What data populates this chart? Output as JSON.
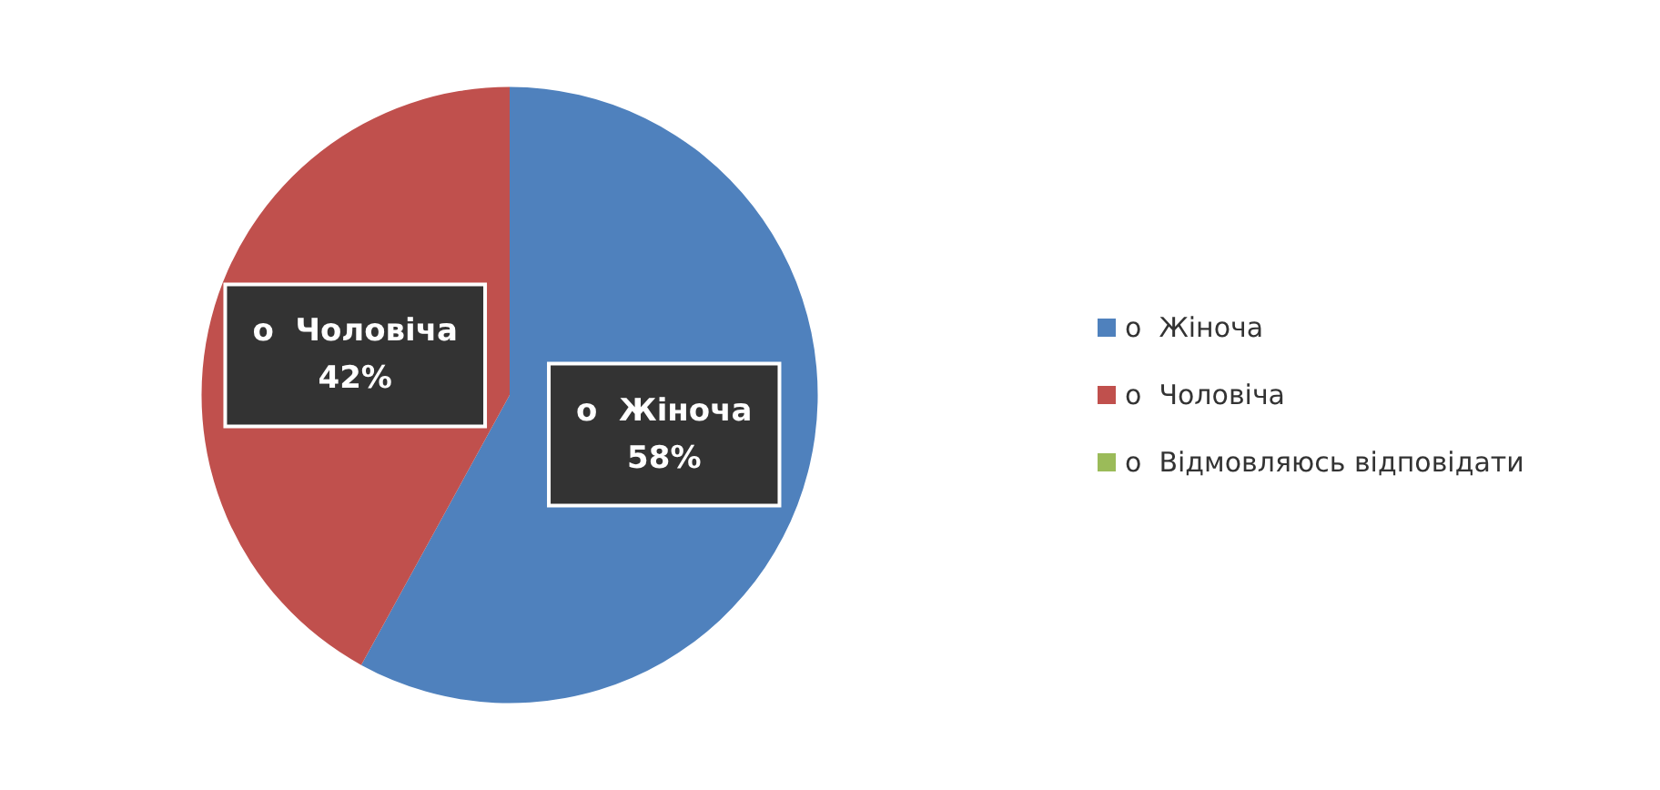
{
  "chart_data": {
    "type": "pie",
    "categories": [
      "o  Жіноча",
      "o  Чоловіча",
      "o  Відмовляюсь відповідати"
    ],
    "values": [
      58,
      42,
      0
    ],
    "colors": [
      "#4f81bd",
      "#c0504d",
      "#9bbb59"
    ],
    "value_labels": [
      "58%",
      "42%",
      null
    ],
    "legend": "right"
  }
}
